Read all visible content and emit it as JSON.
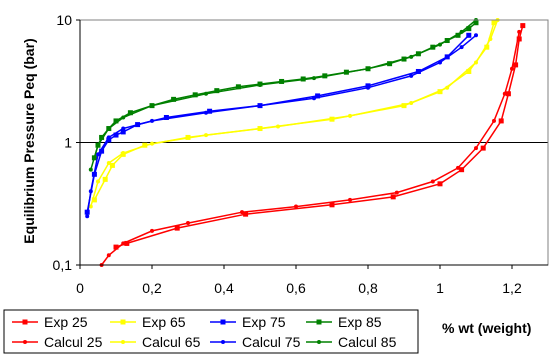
{
  "chart_data": {
    "type": "scatter",
    "title": "",
    "xlabel": "% wt (weight)",
    "ylabel": "Equilibrium Pressure Peq (bar)",
    "xlim": [
      0,
      1.3
    ],
    "ylim": [
      0.1,
      10
    ],
    "y_scale": "log",
    "x_ticks": [
      "0",
      "0,2",
      "0,4",
      "0,6",
      "0,8",
      "1",
      "1,2"
    ],
    "x_tick_values": [
      0,
      0.2,
      0.4,
      0.6,
      0.8,
      1.0,
      1.2
    ],
    "y_ticks": [
      "0,1",
      "1",
      "10"
    ],
    "y_tick_values": [
      0.1,
      1,
      10
    ],
    "grid": "horizontal",
    "legend_position": "bottom",
    "series": [
      {
        "name": "Exp 25",
        "color": "#ff0000",
        "marker": "square",
        "x": [
          0.1,
          0.13,
          0.27,
          0.46,
          0.7,
          0.87,
          1.0,
          1.06,
          1.12,
          1.17,
          1.19,
          1.21,
          1.22,
          1.23
        ],
        "y": [
          0.14,
          0.15,
          0.2,
          0.26,
          0.31,
          0.36,
          0.46,
          0.6,
          0.9,
          1.5,
          2.5,
          4.3,
          7.0,
          9.0
        ]
      },
      {
        "name": "Exp 65",
        "color": "#ffff00",
        "marker": "square",
        "x": [
          0.04,
          0.07,
          0.09,
          0.12,
          0.18,
          0.3,
          0.5,
          0.7,
          0.9,
          1.0,
          1.08,
          1.13,
          1.15
        ],
        "y": [
          0.34,
          0.5,
          0.65,
          0.8,
          0.95,
          1.1,
          1.3,
          1.55,
          2.0,
          2.6,
          3.8,
          6.0,
          9.5
        ]
      },
      {
        "name": "Exp 75",
        "color": "#0000ff",
        "marker": "square",
        "x": [
          0.02,
          0.04,
          0.06,
          0.08,
          0.1,
          0.12,
          0.16,
          0.24,
          0.36,
          0.5,
          0.66,
          0.8,
          0.94,
          1.02,
          1.08
        ],
        "y": [
          0.27,
          0.55,
          0.85,
          1.05,
          1.15,
          1.22,
          1.4,
          1.6,
          1.8,
          2.0,
          2.4,
          2.9,
          3.8,
          5.0,
          7.5
        ]
      },
      {
        "name": "Exp 85",
        "color": "#008000",
        "marker": "square",
        "x": [
          0.04,
          0.05,
          0.06,
          0.08,
          0.1,
          0.14,
          0.2,
          0.26,
          0.32,
          0.38,
          0.44,
          0.5,
          0.56,
          0.62,
          0.68,
          0.74,
          0.8,
          0.86,
          0.9,
          0.94,
          0.98,
          1.02,
          1.05,
          1.08,
          1.1
        ],
        "y": [
          0.75,
          0.95,
          1.1,
          1.3,
          1.5,
          1.75,
          2.0,
          2.25,
          2.45,
          2.65,
          2.85,
          3.0,
          3.15,
          3.3,
          3.5,
          3.75,
          4.0,
          4.4,
          4.8,
          5.3,
          6.0,
          6.8,
          7.5,
          8.5,
          9.5
        ]
      },
      {
        "name": "Calcul 25",
        "color": "#ff0000",
        "marker": "circle",
        "x": [
          0.06,
          0.08,
          0.12,
          0.2,
          0.3,
          0.45,
          0.6,
          0.75,
          0.88,
          0.98,
          1.05,
          1.1,
          1.15,
          1.18,
          1.2,
          1.22
        ],
        "y": [
          0.1,
          0.12,
          0.15,
          0.19,
          0.22,
          0.27,
          0.3,
          0.34,
          0.39,
          0.48,
          0.62,
          0.9,
          1.5,
          2.5,
          4.0,
          8.0
        ]
      },
      {
        "name": "Calcul 65",
        "color": "#ffff00",
        "marker": "circle",
        "x": [
          0.03,
          0.05,
          0.08,
          0.12,
          0.2,
          0.35,
          0.55,
          0.75,
          0.92,
          1.02,
          1.1,
          1.14,
          1.16
        ],
        "y": [
          0.3,
          0.48,
          0.68,
          0.82,
          0.98,
          1.15,
          1.35,
          1.65,
          2.1,
          2.8,
          4.5,
          7.0,
          10.0
        ]
      },
      {
        "name": "Calcul 75",
        "color": "#0000ff",
        "marker": "circle",
        "x": [
          0.02,
          0.03,
          0.05,
          0.08,
          0.12,
          0.2,
          0.35,
          0.5,
          0.65,
          0.8,
          0.92,
          1.0,
          1.06,
          1.1
        ],
        "y": [
          0.25,
          0.4,
          0.8,
          1.1,
          1.3,
          1.5,
          1.75,
          2.0,
          2.3,
          2.8,
          3.5,
          4.5,
          6.0,
          7.5
        ]
      },
      {
        "name": "Calcul 85",
        "color": "#008000",
        "marker": "circle",
        "x": [
          0.03,
          0.05,
          0.08,
          0.12,
          0.2,
          0.35,
          0.5,
          0.65,
          0.8,
          0.92,
          1.0,
          1.06,
          1.1
        ],
        "y": [
          0.6,
          0.95,
          1.3,
          1.6,
          2.0,
          2.5,
          2.95,
          3.35,
          4.0,
          5.0,
          6.3,
          8.0,
          10.0
        ]
      }
    ]
  }
}
